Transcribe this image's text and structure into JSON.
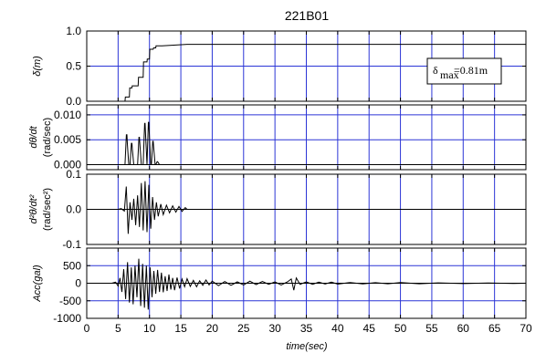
{
  "title": "221B01",
  "colors": {
    "grid": "#2b35d6",
    "trace": "#000000",
    "zero": "#000000"
  },
  "chart_data": [
    {
      "id": "disp",
      "type": "line",
      "ylabel": "δ(m)",
      "ylim": [
        0,
        1.0
      ],
      "yticks": [
        0.0,
        0.5,
        1.0
      ],
      "ytick_labels": [
        "0.0",
        "0.5",
        "1.0"
      ],
      "xlim": [
        0,
        70
      ],
      "grid": true,
      "annotation": {
        "symbol": "δ",
        "subscript": "max",
        "value_text": "=0.81m",
        "placement": "right"
      },
      "x": [
        0,
        6.1,
        6.15,
        6.8,
        6.85,
        7.2,
        7.25,
        8.2,
        8.25,
        9.0,
        9.05,
        9.6,
        9.65,
        10.0,
        10.05,
        10.6,
        10.65,
        11.0,
        11.05,
        12.0,
        16.0,
        70
      ],
      "y": [
        0,
        0,
        0.06,
        0.06,
        0.19,
        0.19,
        0.22,
        0.22,
        0.34,
        0.34,
        0.56,
        0.56,
        0.6,
        0.6,
        0.74,
        0.74,
        0.76,
        0.76,
        0.79,
        0.79,
        0.81,
        0.81
      ]
    },
    {
      "id": "vel",
      "type": "line",
      "ylabel_line1": "dθ/dt",
      "ylabel_line2": "(rad/sec)",
      "ylim": [
        -0.001,
        0.012
      ],
      "yticks": [
        0.0,
        0.005,
        0.01
      ],
      "ytick_labels": [
        "0.000",
        "0.005",
        "0.010"
      ],
      "xlim": [
        0,
        70
      ],
      "grid": true,
      "pulses": [
        [
          6.4,
          0.006
        ],
        [
          7.2,
          0.0043
        ],
        [
          8.4,
          0.0055
        ],
        [
          9.3,
          0.0083
        ],
        [
          9.9,
          0.0085
        ],
        [
          10.6,
          0.0047
        ],
        [
          11.3,
          0.0006
        ]
      ]
    },
    {
      "id": "accang",
      "type": "line",
      "ylabel_line1": "d²θ/dt²",
      "ylabel_line2": "(rad/sec²)",
      "ylim": [
        -0.1,
        0.1
      ],
      "yticks": [
        -0.1,
        0.0,
        0.1
      ],
      "ytick_labels": [
        "-0.1",
        "0.0",
        "0.1"
      ],
      "xlim": [
        0,
        70
      ],
      "grid": true,
      "t": [
        5.0,
        5.5,
        6.0,
        6.3,
        6.6,
        6.9,
        7.2,
        7.5,
        7.8,
        8.1,
        8.4,
        8.7,
        9.0,
        9.3,
        9.6,
        9.9,
        10.2,
        10.5,
        10.8,
        11.1,
        11.4,
        11.8,
        12.2,
        12.7,
        13.2,
        13.7,
        14.2,
        14.7,
        15.2,
        15.7,
        16.0
      ],
      "v": [
        0,
        0.002,
        -0.005,
        0.065,
        -0.07,
        0.02,
        -0.03,
        0.03,
        -0.045,
        0.04,
        -0.05,
        0.075,
        -0.06,
        0.08,
        -0.065,
        0.07,
        -0.055,
        0.035,
        -0.03,
        0.02,
        -0.02,
        0.015,
        -0.015,
        0.012,
        -0.01,
        0.01,
        -0.008,
        0.008,
        -0.006,
        0.005,
        0
      ]
    },
    {
      "id": "acc",
      "type": "line",
      "ylabel": "Acc(gal)",
      "ylim": [
        -1000,
        1000
      ],
      "yticks": [
        -1000,
        -500,
        0,
        500
      ],
      "ytick_labels": [
        "-1000",
        "-500",
        "0",
        "500"
      ],
      "xlim": [
        0,
        70
      ],
      "xticks": [
        0,
        5,
        10,
        15,
        20,
        25,
        30,
        35,
        40,
        45,
        50,
        55,
        60,
        65,
        70
      ],
      "xtick_labels": [
        "0",
        "5",
        "10",
        "15",
        "20",
        "25",
        "30",
        "35",
        "40",
        "45",
        "50",
        "55",
        "60",
        "65",
        "70"
      ],
      "xlabel": "time(sec)",
      "grid": true,
      "t": [
        4.0,
        4.6,
        5.0,
        5.3,
        5.6,
        5.9,
        6.2,
        6.5,
        6.8,
        7.1,
        7.4,
        7.7,
        8.0,
        8.3,
        8.6,
        8.9,
        9.2,
        9.5,
        9.8,
        10.1,
        10.4,
        10.7,
        11.0,
        11.3,
        11.6,
        11.9,
        12.2,
        12.5,
        12.8,
        13.1,
        13.4,
        13.7,
        14.0,
        14.4,
        14.8,
        15.2,
        15.6,
        16.0,
        16.5,
        17.0,
        17.5,
        18.0,
        18.5,
        19.0,
        19.5,
        20.0,
        21.0,
        22.0,
        23.0,
        24.0,
        25.0,
        26.0,
        27.0,
        28.0,
        29.0,
        30.0,
        31.0,
        32.0,
        32.6,
        33.0,
        33.4,
        34.0,
        35.0,
        36.0,
        37.0,
        38.0,
        39.0,
        40.0,
        42.0,
        44.0,
        46.0,
        48.0,
        50.0,
        53.0,
        56.0,
        60.0,
        64.0,
        68.0,
        70.0
      ],
      "v": [
        0,
        30,
        -80,
        150,
        -250,
        400,
        -450,
        600,
        -550,
        450,
        -600,
        500,
        -400,
        700,
        -650,
        550,
        -700,
        500,
        -750,
        450,
        -400,
        350,
        -300,
        380,
        -250,
        300,
        -260,
        200,
        -220,
        250,
        -180,
        150,
        -200,
        160,
        -150,
        120,
        -100,
        130,
        -90,
        80,
        -100,
        70,
        -60,
        90,
        -50,
        60,
        -70,
        50,
        -60,
        40,
        -50,
        60,
        -40,
        50,
        -30,
        40,
        -50,
        40,
        120,
        -200,
        150,
        -30,
        40,
        -30,
        30,
        -20,
        30,
        -25,
        20,
        -20,
        15,
        -15,
        20,
        -15,
        10,
        -10,
        8,
        -5,
        0
      ]
    }
  ]
}
